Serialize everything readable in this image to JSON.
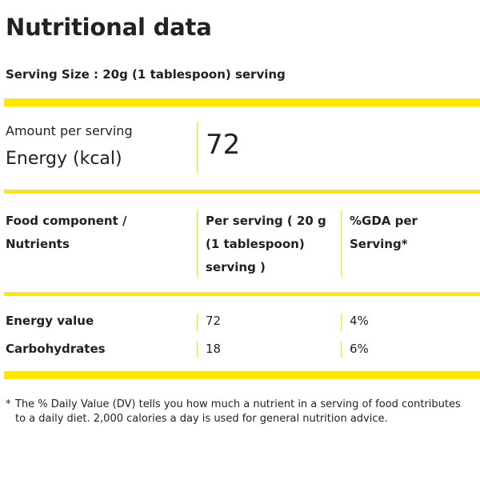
{
  "title": "Nutritional data",
  "serving_size": "Serving Size : 20g (1 tablespoon) serving",
  "amount_per_serving_label": "Amount per serving",
  "energy_label": "Energy (kcal)",
  "energy_value": "72",
  "table": {
    "headers": {
      "component_line1": "Food component /",
      "component_line2": "Nutrients",
      "per_serving_line1": "Per serving ( 20 g",
      "per_serving_line2": "(1 tablespoon)",
      "per_serving_line3": "serving )",
      "gda_line1": "%GDA per",
      "gda_line2": "Serving*"
    },
    "rows": [
      {
        "nutrient": "Energy value",
        "per_serving": "72",
        "gda": "4%"
      },
      {
        "nutrient": "Carbohydrates",
        "per_serving": "18",
        "gda": "6%"
      }
    ]
  },
  "footnote": {
    "marker": "*",
    "text": "The % Daily Value (DV) tells you how much a nutrient in a serving of food contributes to a daily diet. 2,000 calories a day is used for general nutrition advice."
  },
  "colors": {
    "accent_yellow": "#ffe800",
    "text": "#222222"
  }
}
